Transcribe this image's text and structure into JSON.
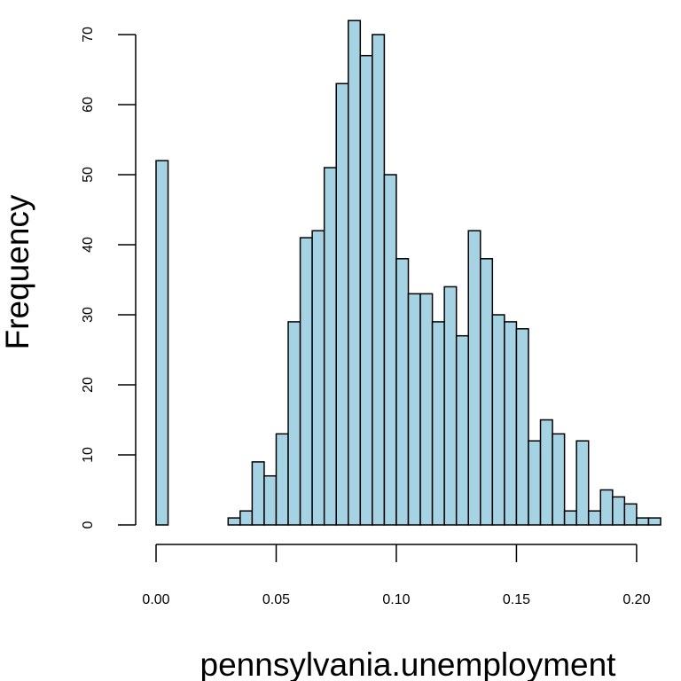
{
  "chart_data": {
    "type": "bar",
    "subtype": "histogram",
    "title": "",
    "xlabel": "pennsylvania.unemployment",
    "ylabel": "Frequency",
    "bin_width": 0.005,
    "bin_starts": [
      0.0,
      0.005,
      0.01,
      0.015,
      0.02,
      0.025,
      0.03,
      0.035,
      0.04,
      0.045,
      0.05,
      0.055,
      0.06,
      0.065,
      0.07,
      0.075,
      0.08,
      0.085,
      0.09,
      0.095,
      0.1,
      0.105,
      0.11,
      0.115,
      0.12,
      0.125,
      0.13,
      0.135,
      0.14,
      0.145,
      0.15,
      0.155,
      0.16,
      0.165,
      0.17,
      0.175,
      0.18,
      0.185,
      0.19,
      0.195,
      0.2,
      0.205
    ],
    "values": [
      52,
      0,
      0,
      0,
      0,
      0,
      1,
      2,
      9,
      7,
      13,
      29,
      41,
      42,
      51,
      63,
      72,
      67,
      70,
      50,
      38,
      33,
      33,
      29,
      34,
      27,
      42,
      38,
      30,
      29,
      28,
      12,
      15,
      13,
      2,
      12,
      2,
      5,
      4,
      3,
      1,
      1
    ],
    "xlim": [
      0,
      0.21
    ],
    "ylim": [
      0,
      70
    ],
    "x_ticks": [
      0,
      0.05,
      0.1,
      0.15,
      0.2
    ],
    "x_tick_labels": [
      "0.00",
      "0.05",
      "0.10",
      "0.15",
      "0.20"
    ],
    "y_ticks": [
      0,
      10,
      20,
      30,
      40,
      50,
      60,
      70
    ],
    "y_tick_labels": [
      "0",
      "10",
      "20",
      "30",
      "40",
      "50",
      "60",
      "70"
    ],
    "bar_color": "#a6d3e3",
    "edge_color": "#000000",
    "grid": false,
    "legend": "none"
  }
}
